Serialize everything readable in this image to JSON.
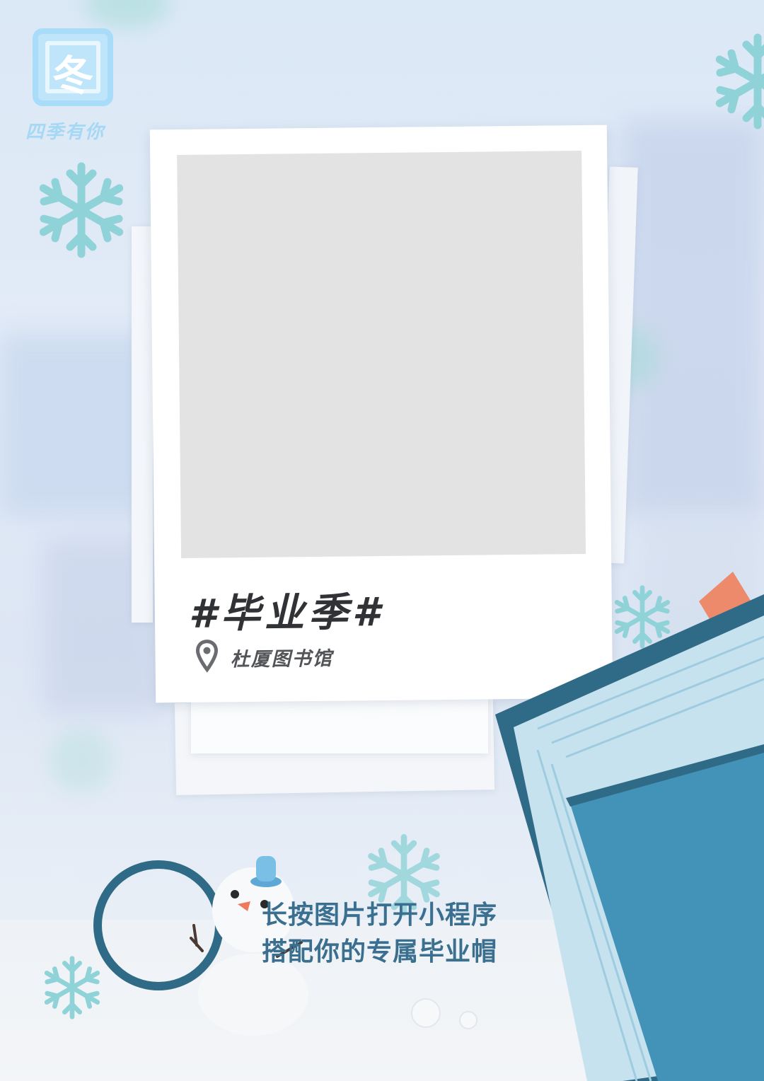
{
  "logo": {
    "glyph": "冬",
    "subtitle": "四季有你"
  },
  "card": {
    "tag": "#毕业季#",
    "location": "杜厦图书馆",
    "icons": {
      "location": "location-pin-icon"
    }
  },
  "cta": {
    "line1": "长按图片打开小程序",
    "line2": "搭配你的专属毕业帽"
  },
  "colors": {
    "snowflake": "#8fd3d8",
    "book_dark": "#2f6a86",
    "book_cover": "#4392b7",
    "photo_placeholder": "#e3e3e3",
    "text_dark": "#303235",
    "cta_text": "#3a6f8f"
  },
  "decor": [
    "snowflake-icon",
    "snowman",
    "magnifier",
    "book",
    "bookmark"
  ]
}
